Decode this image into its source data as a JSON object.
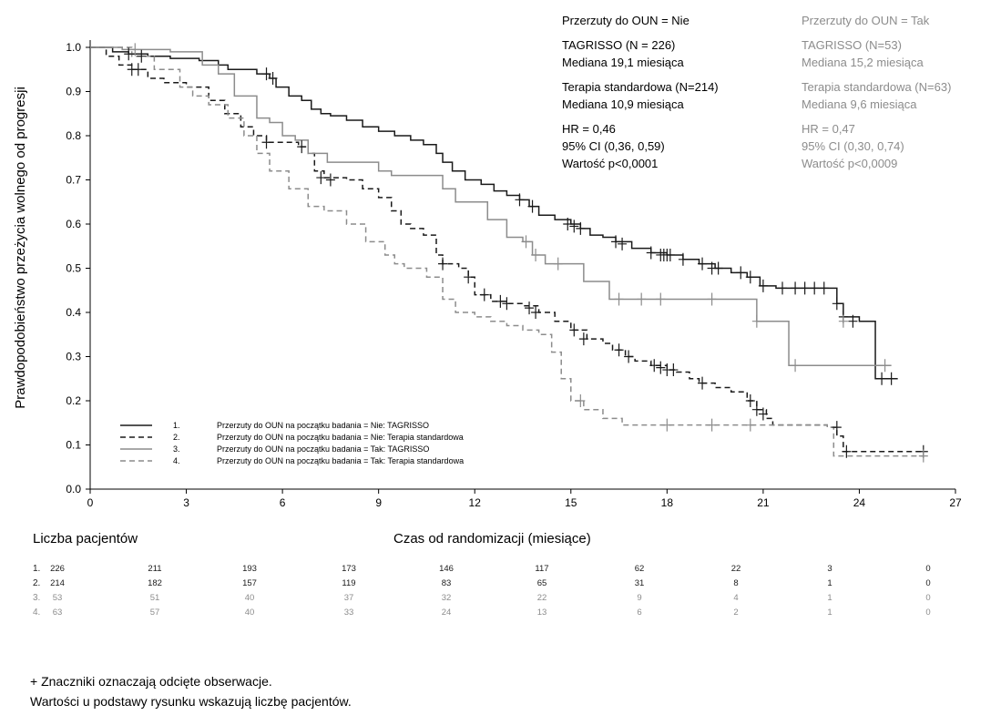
{
  "chart_data": {
    "type": "line",
    "step": true,
    "xlabel": "Czas od randomizacji (miesiące)",
    "ylabel": "Prawdopodobieństwo przeżycia wolnego od progresji",
    "xlim": [
      0,
      27
    ],
    "ylim": [
      0,
      1.0
    ],
    "xticks": [
      0,
      3,
      6,
      9,
      12,
      15,
      18,
      21,
      24,
      27
    ],
    "yticks": [
      "0.0",
      "0.1",
      "0.2",
      "0.3",
      "0.4",
      "0.5",
      "0.6",
      "0.7",
      "0.8",
      "0.9",
      "1.0"
    ],
    "grid": false,
    "legend_position": "bottom-left",
    "series": [
      {
        "id": "1",
        "name": "Przerzuty do OUN na początku badania = Nie: TAGRISSO",
        "color": "#1a1a1a",
        "dash": "solid",
        "points": [
          [
            0,
            1.0
          ],
          [
            0.7,
            0.99
          ],
          [
            1.2,
            0.985
          ],
          [
            1.8,
            0.98
          ],
          [
            2.5,
            0.975
          ],
          [
            3.4,
            0.97
          ],
          [
            4.0,
            0.96
          ],
          [
            4.3,
            0.95
          ],
          [
            5.2,
            0.94
          ],
          [
            5.6,
            0.93
          ],
          [
            5.8,
            0.91
          ],
          [
            6.2,
            0.89
          ],
          [
            6.6,
            0.88
          ],
          [
            6.9,
            0.86
          ],
          [
            7.2,
            0.85
          ],
          [
            7.5,
            0.845
          ],
          [
            8.0,
            0.835
          ],
          [
            8.5,
            0.82
          ],
          [
            9.0,
            0.81
          ],
          [
            9.5,
            0.8
          ],
          [
            10.0,
            0.79
          ],
          [
            10.4,
            0.78
          ],
          [
            10.8,
            0.76
          ],
          [
            11.0,
            0.74
          ],
          [
            11.3,
            0.72
          ],
          [
            11.7,
            0.7
          ],
          [
            12.2,
            0.69
          ],
          [
            12.6,
            0.675
          ],
          [
            13.0,
            0.665
          ],
          [
            13.4,
            0.655
          ],
          [
            13.7,
            0.64
          ],
          [
            14.0,
            0.62
          ],
          [
            14.5,
            0.61
          ],
          [
            15.0,
            0.6
          ],
          [
            15.3,
            0.59
          ],
          [
            15.6,
            0.575
          ],
          [
            16.0,
            0.57
          ],
          [
            16.4,
            0.56
          ],
          [
            16.9,
            0.545
          ],
          [
            17.5,
            0.535
          ],
          [
            18.0,
            0.53
          ],
          [
            18.5,
            0.52
          ],
          [
            19.0,
            0.51
          ],
          [
            19.5,
            0.5
          ],
          [
            20.0,
            0.49
          ],
          [
            20.5,
            0.48
          ],
          [
            20.9,
            0.46
          ],
          [
            21.4,
            0.455
          ],
          [
            22.0,
            0.455
          ],
          [
            23.1,
            0.455
          ],
          [
            23.3,
            0.42
          ],
          [
            23.5,
            0.39
          ],
          [
            24.0,
            0.38
          ],
          [
            24.4,
            0.38
          ],
          [
            24.5,
            0.25
          ],
          [
            25.2,
            0.25
          ]
        ],
        "censored": [
          [
            1.2,
            0.985
          ],
          [
            1.6,
            0.98
          ],
          [
            5.5,
            0.94
          ],
          [
            5.7,
            0.93
          ],
          [
            13.4,
            0.655
          ],
          [
            13.8,
            0.64
          ],
          [
            14.9,
            0.6
          ],
          [
            15.1,
            0.595
          ],
          [
            15.3,
            0.59
          ],
          [
            16.4,
            0.56
          ],
          [
            16.6,
            0.555
          ],
          [
            17.5,
            0.535
          ],
          [
            17.8,
            0.53
          ],
          [
            17.9,
            0.53
          ],
          [
            18.0,
            0.53
          ],
          [
            18.1,
            0.53
          ],
          [
            18.5,
            0.52
          ],
          [
            19.1,
            0.51
          ],
          [
            19.4,
            0.5
          ],
          [
            19.6,
            0.5
          ],
          [
            20.3,
            0.49
          ],
          [
            20.6,
            0.48
          ],
          [
            21.0,
            0.46
          ],
          [
            21.6,
            0.455
          ],
          [
            22.0,
            0.455
          ],
          [
            22.3,
            0.455
          ],
          [
            22.6,
            0.455
          ],
          [
            22.9,
            0.455
          ],
          [
            23.3,
            0.42
          ],
          [
            23.5,
            0.39
          ],
          [
            23.8,
            0.38
          ],
          [
            24.7,
            0.25
          ],
          [
            25.0,
            0.25
          ]
        ]
      },
      {
        "id": "2",
        "name": "Przerzuty do OUN na początku badania = Nie: Terapia standardowa",
        "color": "#1a1a1a",
        "dash": "dashed",
        "points": [
          [
            0,
            1.0
          ],
          [
            0.5,
            0.98
          ],
          [
            0.9,
            0.96
          ],
          [
            1.3,
            0.95
          ],
          [
            1.8,
            0.93
          ],
          [
            2.3,
            0.92
          ],
          [
            3.0,
            0.91
          ],
          [
            3.7,
            0.88
          ],
          [
            4.2,
            0.85
          ],
          [
            4.7,
            0.82
          ],
          [
            5.1,
            0.8
          ],
          [
            5.5,
            0.785
          ],
          [
            6.0,
            0.785
          ],
          [
            6.5,
            0.775
          ],
          [
            6.8,
            0.76
          ],
          [
            7.0,
            0.72
          ],
          [
            7.3,
            0.705
          ],
          [
            8.0,
            0.7
          ],
          [
            8.5,
            0.68
          ],
          [
            9.0,
            0.66
          ],
          [
            9.4,
            0.63
          ],
          [
            9.7,
            0.6
          ],
          [
            10.0,
            0.59
          ],
          [
            10.4,
            0.575
          ],
          [
            10.8,
            0.53
          ],
          [
            11.0,
            0.51
          ],
          [
            11.5,
            0.5
          ],
          [
            11.8,
            0.48
          ],
          [
            12.0,
            0.44
          ],
          [
            12.5,
            0.425
          ],
          [
            13.0,
            0.42
          ],
          [
            13.5,
            0.415
          ],
          [
            14.0,
            0.4
          ],
          [
            14.5,
            0.38
          ],
          [
            15.0,
            0.36
          ],
          [
            15.5,
            0.34
          ],
          [
            16.0,
            0.33
          ],
          [
            16.3,
            0.315
          ],
          [
            16.7,
            0.3
          ],
          [
            17.0,
            0.29
          ],
          [
            17.5,
            0.28
          ],
          [
            18.0,
            0.27
          ],
          [
            18.3,
            0.265
          ],
          [
            18.7,
            0.25
          ],
          [
            19.0,
            0.24
          ],
          [
            19.5,
            0.23
          ],
          [
            20.0,
            0.22
          ],
          [
            20.5,
            0.2
          ],
          [
            20.8,
            0.18
          ],
          [
            21.1,
            0.16
          ],
          [
            21.3,
            0.145
          ],
          [
            23.0,
            0.14
          ],
          [
            23.3,
            0.12
          ],
          [
            23.5,
            0.085
          ],
          [
            26.0,
            0.085
          ]
        ],
        "censored": [
          [
            1.3,
            0.95
          ],
          [
            1.5,
            0.95
          ],
          [
            5.5,
            0.785
          ],
          [
            6.6,
            0.775
          ],
          [
            7.2,
            0.705
          ],
          [
            7.5,
            0.7
          ],
          [
            11.0,
            0.51
          ],
          [
            11.8,
            0.48
          ],
          [
            12.3,
            0.44
          ],
          [
            12.8,
            0.425
          ],
          [
            13.0,
            0.42
          ],
          [
            13.7,
            0.41
          ],
          [
            13.9,
            0.4
          ],
          [
            15.1,
            0.36
          ],
          [
            15.4,
            0.34
          ],
          [
            16.5,
            0.315
          ],
          [
            16.8,
            0.3
          ],
          [
            17.6,
            0.28
          ],
          [
            17.8,
            0.275
          ],
          [
            18.0,
            0.27
          ],
          [
            18.2,
            0.27
          ],
          [
            19.1,
            0.24
          ],
          [
            20.6,
            0.2
          ],
          [
            20.8,
            0.18
          ],
          [
            21.0,
            0.17
          ],
          [
            23.3,
            0.14
          ],
          [
            23.6,
            0.085
          ],
          [
            26.0,
            0.085
          ]
        ]
      },
      {
        "id": "3",
        "name": "Przerzuty do OUN na początku badania = Tak: TAGRISSO",
        "color": "#8c8c8c",
        "dash": "solid",
        "points": [
          [
            0,
            1.0
          ],
          [
            1.0,
            0.995
          ],
          [
            2.5,
            0.99
          ],
          [
            3.5,
            0.96
          ],
          [
            4.0,
            0.94
          ],
          [
            4.5,
            0.89
          ],
          [
            5.2,
            0.84
          ],
          [
            5.6,
            0.83
          ],
          [
            6.0,
            0.8
          ],
          [
            6.4,
            0.79
          ],
          [
            6.8,
            0.76
          ],
          [
            7.4,
            0.74
          ],
          [
            8.0,
            0.74
          ],
          [
            9.0,
            0.72
          ],
          [
            9.4,
            0.71
          ],
          [
            10.0,
            0.71
          ],
          [
            10.9,
            0.71
          ],
          [
            11.0,
            0.68
          ],
          [
            11.4,
            0.65
          ],
          [
            12.4,
            0.61
          ],
          [
            13.0,
            0.57
          ],
          [
            13.5,
            0.56
          ],
          [
            13.8,
            0.53
          ],
          [
            14.2,
            0.51
          ],
          [
            15.0,
            0.51
          ],
          [
            15.4,
            0.47
          ],
          [
            16.2,
            0.43
          ],
          [
            16.6,
            0.43
          ],
          [
            20.6,
            0.43
          ],
          [
            20.8,
            0.38
          ],
          [
            21.7,
            0.38
          ],
          [
            21.8,
            0.28
          ],
          [
            23.0,
            0.28
          ],
          [
            23.3,
            0.28
          ],
          [
            25.0,
            0.28
          ]
        ],
        "censored": [
          [
            1.4,
            0.995
          ],
          [
            13.6,
            0.56
          ],
          [
            13.9,
            0.53
          ],
          [
            14.6,
            0.51
          ],
          [
            16.5,
            0.43
          ],
          [
            17.2,
            0.43
          ],
          [
            17.8,
            0.43
          ],
          [
            19.4,
            0.43
          ],
          [
            20.8,
            0.38
          ],
          [
            22.0,
            0.28
          ],
          [
            23.5,
            0.38
          ],
          [
            24.8,
            0.28
          ]
        ]
      },
      {
        "id": "4",
        "name": "Przerzuty do OUN na początku badania = Tak: Terapia standardowa",
        "color": "#8c8c8c",
        "dash": "dashed",
        "points": [
          [
            0,
            1.0
          ],
          [
            1.3,
            0.98
          ],
          [
            2.0,
            0.95
          ],
          [
            2.8,
            0.91
          ],
          [
            3.2,
            0.89
          ],
          [
            3.7,
            0.87
          ],
          [
            4.3,
            0.84
          ],
          [
            4.8,
            0.8
          ],
          [
            5.2,
            0.76
          ],
          [
            5.6,
            0.72
          ],
          [
            6.2,
            0.68
          ],
          [
            6.8,
            0.64
          ],
          [
            7.3,
            0.63
          ],
          [
            8.0,
            0.6
          ],
          [
            8.6,
            0.56
          ],
          [
            9.2,
            0.53
          ],
          [
            9.5,
            0.51
          ],
          [
            9.8,
            0.5
          ],
          [
            10.5,
            0.48
          ],
          [
            11.0,
            0.43
          ],
          [
            11.4,
            0.4
          ],
          [
            12.0,
            0.39
          ],
          [
            12.5,
            0.38
          ],
          [
            13.0,
            0.37
          ],
          [
            13.5,
            0.36
          ],
          [
            14.0,
            0.35
          ],
          [
            14.4,
            0.31
          ],
          [
            14.7,
            0.25
          ],
          [
            15.0,
            0.2
          ],
          [
            15.4,
            0.18
          ],
          [
            16.0,
            0.16
          ],
          [
            16.6,
            0.145
          ],
          [
            18.0,
            0.145
          ],
          [
            20.6,
            0.145
          ],
          [
            20.9,
            0.145
          ],
          [
            23.0,
            0.14
          ],
          [
            23.2,
            0.075
          ],
          [
            26.0,
            0.075
          ]
        ],
        "censored": [
          [
            15.3,
            0.2
          ],
          [
            18.0,
            0.145
          ],
          [
            19.4,
            0.145
          ],
          [
            20.6,
            0.145
          ],
          [
            26.0,
            0.075
          ]
        ]
      }
    ],
    "legend_numbers": [
      "1.",
      "2.",
      "3.",
      "4."
    ]
  },
  "annotations": {
    "left": {
      "header": "Przerzuty do OUN = Nie",
      "n_tag": "TAGRISSO (N = 226)",
      "med_tag": "Mediana 19,1 miesiąca",
      "n_std": "Terapia standardowa (N=214)",
      "med_std": "Mediana 10,9 miesiąca",
      "hr": "HR = 0,46",
      "ci": "95% CI (0,36, 0,59)",
      "p": "Wartość p<0,0001"
    },
    "right": {
      "header": "Przerzuty do OUN = Tak",
      "n_tag": "TAGRISSO (N=53)",
      "med_tag": "Mediana 15,2 miesiąca",
      "n_std": "Terapia standardowa (N=63)",
      "med_std": "Mediana 9,6 miesiąca",
      "hr": "HR = 0,47",
      "ci": "95% CI (0,30, 0,74)",
      "p": "Wartość p<0,0009"
    }
  },
  "risk_table": {
    "title": "Liczba pacjentów",
    "xlabel": "Czas od randomizacji (miesiące)",
    "row_labels": [
      "1.",
      "2.",
      "3.",
      "4."
    ],
    "rows": [
      [
        "226",
        "211",
        "193",
        "173",
        "146",
        "117",
        "62",
        "22",
        "3",
        "0"
      ],
      [
        "214",
        "182",
        "157",
        "119",
        "83",
        "65",
        "31",
        "8",
        "1",
        "0"
      ],
      [
        "53",
        "51",
        "40",
        "37",
        "32",
        "22",
        "9",
        "4",
        "1",
        "0"
      ],
      [
        "63",
        "57",
        "40",
        "33",
        "24",
        "13",
        "6",
        "2",
        "1",
        "0"
      ]
    ],
    "row_colors": [
      "#1a1a1a",
      "#1a1a1a",
      "#8c8c8c",
      "#8c8c8c"
    ]
  },
  "footnotes": {
    "line1": "+ Znaczniki oznaczają odcięte obserwacje.",
    "line2": "Wartości u podstawy rysunku wskazują liczbę pacjentów."
  }
}
